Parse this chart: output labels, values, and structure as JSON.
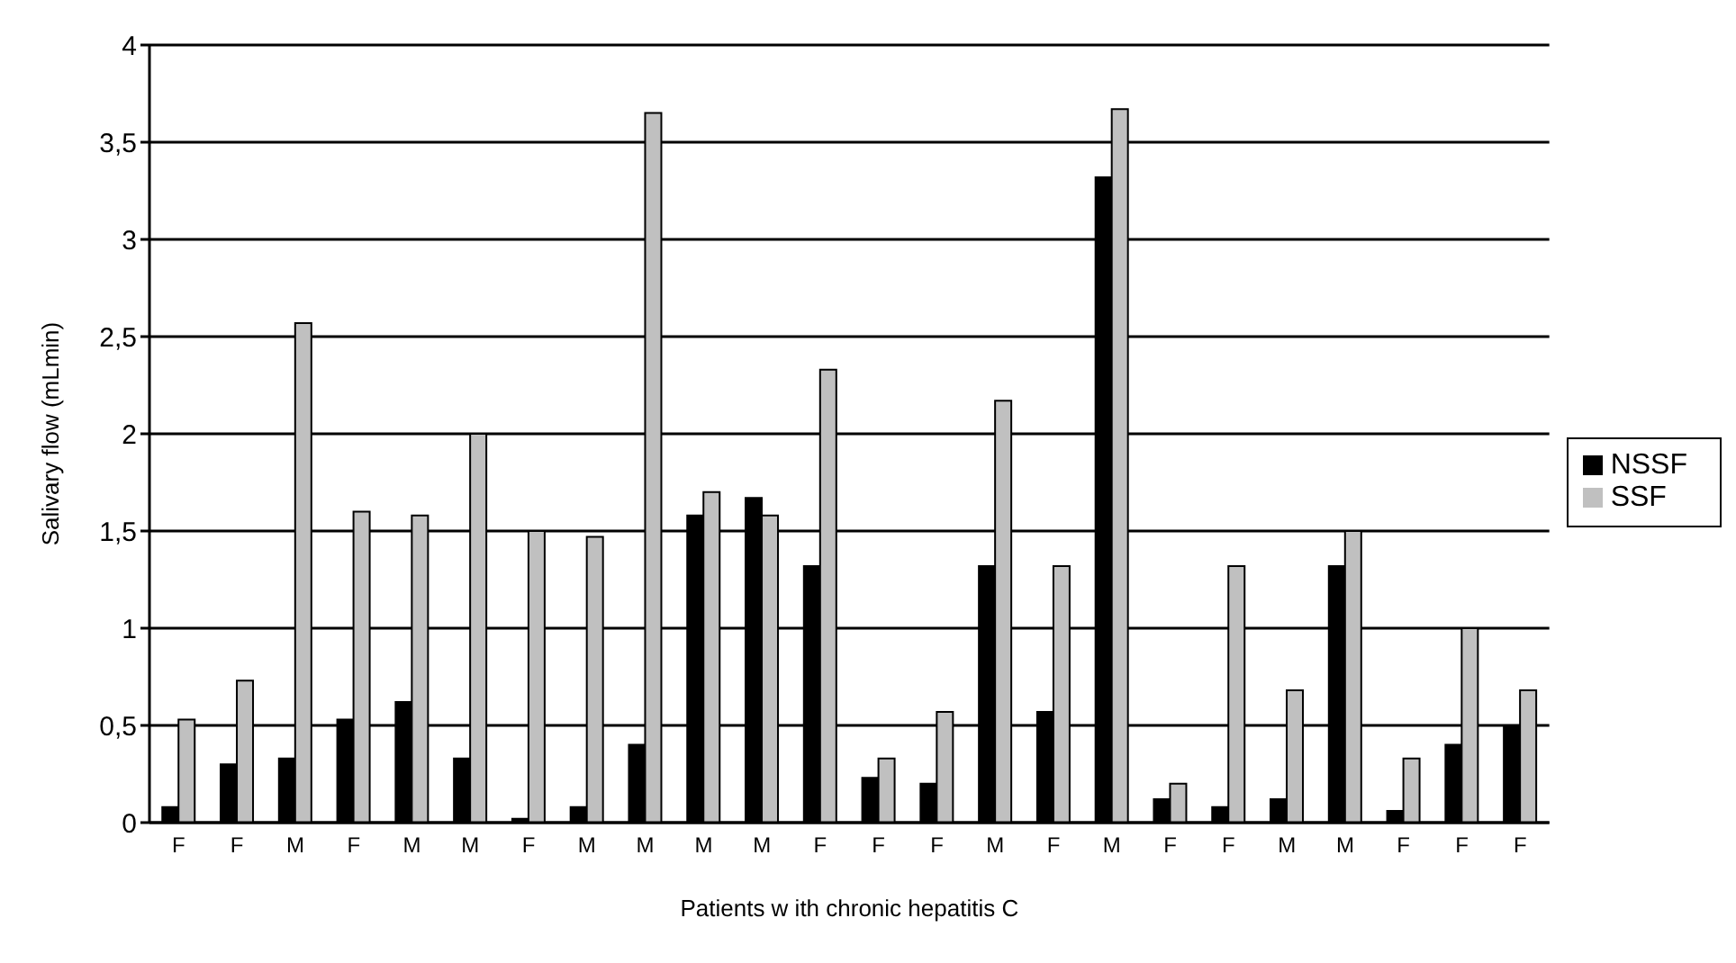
{
  "chart_data": {
    "type": "bar",
    "xlabel": "Patients w ith chronic hepatitis C",
    "ylabel": "Salivary flow (mLmin)",
    "categories": [
      "F",
      "F",
      "M",
      "F",
      "M",
      "M",
      "F",
      "M",
      "M",
      "M",
      "M",
      "F",
      "F",
      "F",
      "M",
      "F",
      "M",
      "F",
      "F",
      "M",
      "M",
      "F",
      "F",
      "F"
    ],
    "series": [
      {
        "name": "NSSF",
        "color": "#000000",
        "values": [
          0.08,
          0.3,
          0.33,
          0.53,
          0.62,
          0.33,
          0.02,
          0.08,
          0.4,
          1.58,
          1.67,
          1.32,
          0.23,
          0.2,
          1.32,
          0.57,
          3.32,
          0.12,
          0.08,
          0.12,
          1.32,
          0.06,
          0.4,
          0.5
        ]
      },
      {
        "name": "SSF",
        "color": "#c0c0c0",
        "values": [
          0.53,
          0.73,
          2.57,
          1.6,
          1.58,
          2.0,
          1.5,
          1.47,
          3.65,
          1.7,
          1.58,
          2.33,
          0.33,
          0.57,
          2.17,
          1.32,
          3.67,
          0.2,
          1.32,
          0.68,
          1.5,
          0.33,
          1.0,
          0.68
        ]
      }
    ],
    "ylim": [
      0,
      4
    ],
    "yticks": [
      0,
      {
        "value": 0.5,
        "label": "0,5"
      },
      1,
      {
        "value": 1.5,
        "label": "1,5"
      },
      2,
      {
        "value": 2.5,
        "label": "2,5"
      },
      3,
      {
        "value": 3.5,
        "label": "3,5"
      },
      4
    ],
    "grid": "y",
    "legend": "right"
  }
}
